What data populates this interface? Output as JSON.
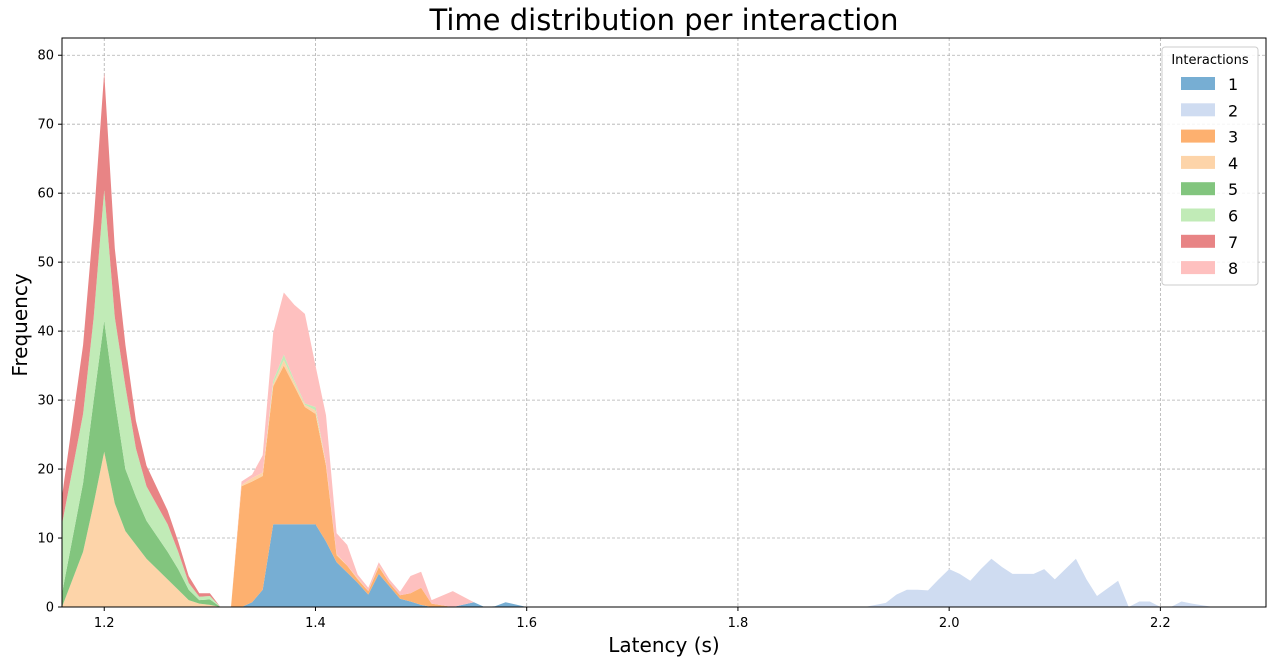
{
  "chart_data": {
    "type": "area",
    "stacked": true,
    "title": "Time distribution per interaction",
    "xlabel": "Latency (s)",
    "ylabel": "Frequency",
    "xlim": [
      1.16,
      2.3
    ],
    "ylim": [
      0,
      82.5
    ],
    "grid": true,
    "legend": {
      "title": "Interactions",
      "placement": "top-right"
    },
    "x_ticks": [
      1.2,
      1.4,
      1.6,
      1.8,
      2.0,
      2.2
    ],
    "y_ticks": [
      0,
      10,
      20,
      30,
      40,
      50,
      60,
      70,
      80
    ],
    "x": [
      1.16,
      1.18,
      1.19,
      1.2,
      1.21,
      1.22,
      1.23,
      1.24,
      1.26,
      1.27,
      1.28,
      1.29,
      1.3,
      1.31,
      1.32,
      1.33,
      1.34,
      1.35,
      1.36,
      1.37,
      1.38,
      1.39,
      1.4,
      1.41,
      1.42,
      1.43,
      1.44,
      1.45,
      1.46,
      1.47,
      1.48,
      1.49,
      1.5,
      1.51,
      1.53,
      1.55,
      1.56,
      1.57,
      1.58,
      1.6,
      1.92,
      1.94,
      1.95,
      1.96,
      1.97,
      1.98,
      1.99,
      2.0,
      2.01,
      2.02,
      2.03,
      2.04,
      2.05,
      2.06,
      2.07,
      2.08,
      2.09,
      2.1,
      2.11,
      2.12,
      2.13,
      2.14,
      2.16,
      2.17,
      2.18,
      2.19,
      2.2,
      2.21,
      2.22,
      2.23,
      2.25
    ],
    "series": [
      {
        "name": "1",
        "color": "#77aed3",
        "values": [
          0,
          0,
          0,
          0,
          0,
          0,
          0,
          0,
          0,
          0,
          0,
          0,
          0,
          0,
          0,
          0,
          0.7,
          2.5,
          12,
          12,
          12,
          12,
          12,
          9.5,
          6.5,
          5,
          3.5,
          1.8,
          4.8,
          3,
          1.2,
          0.8,
          0.3,
          0,
          0,
          0.7,
          0,
          0.1,
          0.7,
          0,
          0,
          0,
          0,
          0,
          0,
          0,
          0,
          0,
          0,
          0,
          0,
          0,
          0,
          0,
          0,
          0,
          0,
          0,
          0,
          0,
          0,
          0,
          0,
          0,
          0,
          0,
          0,
          0,
          0,
          0,
          0
        ]
      },
      {
        "name": "2",
        "color": "#cfdcf1",
        "values": [
          0,
          0,
          0,
          0,
          0,
          0,
          0,
          0,
          0,
          0,
          0,
          0,
          0,
          0,
          0,
          0,
          0,
          0,
          0,
          0,
          0,
          0,
          0,
          0,
          0,
          0,
          0,
          0,
          0,
          0,
          0,
          0,
          0,
          0,
          0,
          0,
          0,
          0,
          0,
          0,
          0,
          0.6,
          1.8,
          2.5,
          2.5,
          2.4,
          4,
          5.5,
          4.8,
          3.8,
          5.5,
          7,
          5.8,
          4.8,
          4.8,
          4.8,
          5.5,
          4,
          5.5,
          7,
          4,
          1.6,
          3.8,
          0,
          0.8,
          0.8,
          0,
          0,
          0.8,
          0.5,
          0
        ]
      },
      {
        "name": "3",
        "color": "#fdb06f",
        "values": [
          0,
          0,
          0,
          0,
          0,
          0,
          0,
          0,
          0,
          0,
          0,
          0,
          0,
          0,
          0,
          17.5,
          17.5,
          16.5,
          20,
          23,
          20,
          17,
          16,
          11,
          1,
          1,
          0.5,
          0.5,
          1,
          0.5,
          0.5,
          1.2,
          2.5,
          0.5,
          0,
          0,
          0,
          0,
          0,
          0,
          0,
          0,
          0,
          0,
          0,
          0,
          0,
          0,
          0,
          0,
          0,
          0,
          0,
          0,
          0,
          0,
          0,
          0,
          0,
          0,
          0,
          0,
          0,
          0,
          0,
          0,
          0,
          0,
          0,
          0,
          0
        ]
      },
      {
        "name": "4",
        "color": "#fdd4a9",
        "values": [
          0,
          8,
          15,
          22.5,
          15,
          11,
          9,
          7,
          4,
          2.5,
          1,
          0.5,
          0.3,
          0,
          0,
          0.2,
          0.5,
          0.5,
          0.3,
          0.8,
          0.5,
          0.3,
          0.5,
          0.3,
          0.2,
          0,
          0.2,
          0,
          0.2,
          0,
          0,
          0,
          0,
          0,
          0,
          0,
          0,
          0,
          0,
          0,
          0,
          0,
          0,
          0,
          0,
          0,
          0,
          0,
          0,
          0,
          0,
          0,
          0,
          0,
          0,
          0,
          0,
          0,
          0,
          0,
          0,
          0,
          0,
          0,
          0,
          0,
          0,
          0,
          0,
          0,
          0
        ]
      },
      {
        "name": "5",
        "color": "#82c57e",
        "values": [
          2,
          10,
          15,
          19,
          15,
          9,
          7,
          5.5,
          4,
          3,
          1.5,
          0.5,
          0.8,
          0,
          0,
          0,
          0,
          0,
          0,
          0,
          0,
          0,
          0,
          0,
          0,
          0,
          0,
          0,
          0,
          0,
          0,
          0,
          0,
          0,
          0,
          0,
          0,
          0,
          0,
          0,
          0,
          0,
          0,
          0,
          0,
          0,
          0,
          0,
          0,
          0,
          0,
          0,
          0,
          0,
          0,
          0,
          0,
          0,
          0,
          0,
          0,
          0,
          0,
          0,
          0,
          0,
          0,
          0,
          0,
          0,
          0
        ]
      },
      {
        "name": "6",
        "color": "#c1ebb7",
        "values": [
          10,
          10,
          12,
          19,
          12,
          12,
          7,
          5,
          4,
          2.5,
          1,
          0.5,
          0.5,
          0,
          0,
          0,
          0,
          0,
          0.5,
          0.8,
          0.3,
          0.2,
          0.5,
          0,
          0,
          0,
          0,
          0,
          0,
          0,
          0,
          0,
          0,
          0,
          0,
          0,
          0,
          0,
          0,
          0,
          0,
          0,
          0,
          0,
          0,
          0,
          0,
          0,
          0,
          0,
          0,
          0,
          0,
          0,
          0,
          0,
          0,
          0,
          0,
          0,
          0,
          0,
          0,
          0,
          0,
          0,
          0,
          0,
          0,
          0,
          0
        ]
      },
      {
        "name": "7",
        "color": "#e88485",
        "values": [
          4,
          10,
          14,
          17,
          10,
          6,
          4,
          3,
          2,
          1.5,
          1,
          0.5,
          0.4,
          0,
          0,
          0,
          0,
          0,
          0,
          0,
          0,
          0,
          0,
          0,
          0,
          0,
          0,
          0,
          0,
          0,
          0,
          0,
          0,
          0,
          0,
          0,
          0,
          0,
          0,
          0,
          0,
          0,
          0,
          0,
          0,
          0,
          0,
          0,
          0,
          0,
          0,
          0,
          0,
          0,
          0,
          0,
          0,
          0,
          0,
          0,
          0,
          0,
          0,
          0,
          0,
          0,
          0,
          0,
          0,
          0,
          0
        ]
      },
      {
        "name": "8",
        "color": "#fec0bf",
        "values": [
          0,
          0,
          0,
          0,
          0,
          0,
          0,
          0,
          0,
          0,
          0,
          0,
          0,
          0,
          0,
          0.5,
          0.5,
          2.5,
          7,
          9,
          11,
          13,
          6,
          7,
          3,
          3,
          0.5,
          0.5,
          0.5,
          0.5,
          0.5,
          2.5,
          2.3,
          0.5,
          2.3,
          0,
          0,
          0,
          0,
          0,
          0,
          0,
          0,
          0,
          0,
          0,
          0,
          0,
          0,
          0,
          0,
          0,
          0,
          0,
          0,
          0,
          0,
          0,
          0,
          0,
          0,
          0,
          0,
          0,
          0,
          0,
          0,
          0,
          0,
          0,
          0
        ]
      }
    ]
  }
}
